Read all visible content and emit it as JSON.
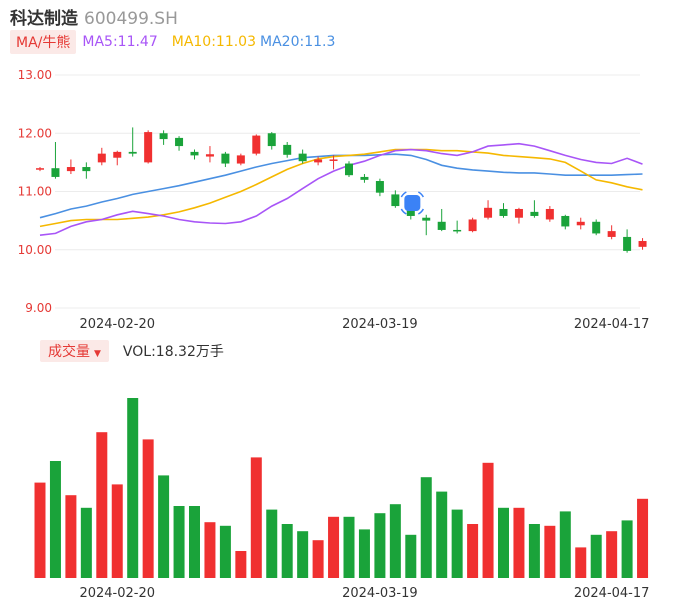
{
  "header": {
    "name": "科达制造",
    "code": "600499.SH"
  },
  "ma_bar": {
    "toggle": "MA/牛熊",
    "ma5": "MA5:11.47",
    "ma10": "MA10:11.03",
    "ma20": "MA20:11.3",
    "colors": {
      "ma5": "#a855f7",
      "ma10": "#f5b800",
      "ma20": "#4a90e2"
    }
  },
  "vol_bar": {
    "toggle": "成交量",
    "value": "VOL:18.32万手"
  },
  "colors": {
    "up": "#f03030",
    "down": "#1aa33a"
  },
  "chart_data": {
    "type": "candlestick",
    "y_ticks": [
      "13.00",
      "12.00",
      "11.00",
      "10.00",
      "9.00"
    ],
    "ylim": [
      9,
      13
    ],
    "x_tick_labels": [
      "2024-02-20",
      "2024-03-19",
      "2024-04-17"
    ],
    "candles": [
      {
        "o": 11.38,
        "h": 11.42,
        "l": 11.35,
        "c": 11.4
      },
      {
        "o": 11.4,
        "h": 11.85,
        "l": 11.22,
        "c": 11.25
      },
      {
        "o": 11.35,
        "h": 11.55,
        "l": 11.3,
        "c": 11.42
      },
      {
        "o": 11.42,
        "h": 11.5,
        "l": 11.22,
        "c": 11.35
      },
      {
        "o": 11.5,
        "h": 11.75,
        "l": 11.45,
        "c": 11.65
      },
      {
        "o": 11.58,
        "h": 11.7,
        "l": 11.45,
        "c": 11.68
      },
      {
        "o": 11.68,
        "h": 12.1,
        "l": 11.6,
        "c": 11.65
      },
      {
        "o": 11.5,
        "h": 12.05,
        "l": 11.48,
        "c": 12.02
      },
      {
        "o": 12.0,
        "h": 12.05,
        "l": 11.8,
        "c": 11.9
      },
      {
        "o": 11.92,
        "h": 11.95,
        "l": 11.7,
        "c": 11.78
      },
      {
        "o": 11.68,
        "h": 11.72,
        "l": 11.55,
        "c": 11.62
      },
      {
        "o": 11.6,
        "h": 11.78,
        "l": 11.5,
        "c": 11.64
      },
      {
        "o": 11.65,
        "h": 11.68,
        "l": 11.42,
        "c": 11.48
      },
      {
        "o": 11.48,
        "h": 11.65,
        "l": 11.45,
        "c": 11.62
      },
      {
        "o": 11.65,
        "h": 11.98,
        "l": 11.62,
        "c": 11.96
      },
      {
        "o": 12.0,
        "h": 12.02,
        "l": 11.72,
        "c": 11.78
      },
      {
        "o": 11.8,
        "h": 11.85,
        "l": 11.58,
        "c": 11.63
      },
      {
        "o": 11.65,
        "h": 11.72,
        "l": 11.48,
        "c": 11.52
      },
      {
        "o": 11.5,
        "h": 11.6,
        "l": 11.45,
        "c": 11.55
      },
      {
        "o": 11.55,
        "h": 11.62,
        "l": 11.38,
        "c": 11.55
      },
      {
        "o": 11.48,
        "h": 11.52,
        "l": 11.25,
        "c": 11.28
      },
      {
        "o": 11.25,
        "h": 11.3,
        "l": 11.15,
        "c": 11.2
      },
      {
        "o": 11.18,
        "h": 11.22,
        "l": 10.92,
        "c": 10.98
      },
      {
        "o": 10.95,
        "h": 11.02,
        "l": 10.72,
        "c": 10.75
      },
      {
        "o": 10.78,
        "h": 10.82,
        "l": 10.52,
        "c": 10.58
      },
      {
        "o": 10.55,
        "h": 10.6,
        "l": 10.25,
        "c": 10.5
      },
      {
        "o": 10.48,
        "h": 10.7,
        "l": 10.32,
        "c": 10.34
      },
      {
        "o": 10.34,
        "h": 10.5,
        "l": 10.28,
        "c": 10.32
      },
      {
        "o": 10.32,
        "h": 10.55,
        "l": 10.3,
        "c": 10.52
      },
      {
        "o": 10.55,
        "h": 10.85,
        "l": 10.52,
        "c": 10.72
      },
      {
        "o": 10.7,
        "h": 10.8,
        "l": 10.55,
        "c": 10.58
      },
      {
        "o": 10.55,
        "h": 10.72,
        "l": 10.45,
        "c": 10.7
      },
      {
        "o": 10.65,
        "h": 10.85,
        "l": 10.55,
        "c": 10.58
      },
      {
        "o": 10.52,
        "h": 10.75,
        "l": 10.48,
        "c": 10.7
      },
      {
        "o": 10.58,
        "h": 10.6,
        "l": 10.35,
        "c": 10.4
      },
      {
        "o": 10.42,
        "h": 10.55,
        "l": 10.35,
        "c": 10.48
      },
      {
        "o": 10.48,
        "h": 10.52,
        "l": 10.25,
        "c": 10.28
      },
      {
        "o": 10.22,
        "h": 10.42,
        "l": 10.18,
        "c": 10.32
      },
      {
        "o": 10.22,
        "h": 10.35,
        "l": 9.95,
        "c": 9.98
      },
      {
        "o": 10.05,
        "h": 10.2,
        "l": 10.0,
        "c": 10.15
      }
    ],
    "ma5": [
      10.25,
      10.28,
      10.4,
      10.48,
      10.52,
      10.6,
      10.66,
      10.62,
      10.58,
      10.52,
      10.48,
      10.46,
      10.45,
      10.48,
      10.58,
      10.75,
      10.88,
      11.05,
      11.22,
      11.35,
      11.45,
      11.52,
      11.62,
      11.7,
      11.72,
      11.7,
      11.65,
      11.62,
      11.68,
      11.78,
      11.8,
      11.82,
      11.78,
      11.7,
      11.62,
      11.55,
      11.5,
      11.48,
      11.57,
      11.47
    ],
    "ma10": [
      10.4,
      10.45,
      10.5,
      10.52,
      10.52,
      10.52,
      10.54,
      10.56,
      10.6,
      10.65,
      10.72,
      10.8,
      10.9,
      11.0,
      11.12,
      11.25,
      11.38,
      11.48,
      11.56,
      11.6,
      11.62,
      11.64,
      11.68,
      11.72,
      11.72,
      11.72,
      11.7,
      11.7,
      11.68,
      11.66,
      11.62,
      11.6,
      11.58,
      11.56,
      11.5,
      11.35,
      11.2,
      11.15,
      11.08,
      11.03
    ],
    "ma20": [
      10.55,
      10.62,
      10.7,
      10.75,
      10.82,
      10.88,
      10.95,
      11.0,
      11.05,
      11.1,
      11.16,
      11.22,
      11.28,
      11.35,
      11.42,
      11.48,
      11.53,
      11.58,
      11.6,
      11.62,
      11.62,
      11.62,
      11.63,
      11.64,
      11.62,
      11.55,
      11.45,
      11.4,
      11.37,
      11.35,
      11.33,
      11.32,
      11.32,
      11.3,
      11.28,
      11.28,
      11.28,
      11.28,
      11.29,
      11.3
    ],
    "volume": [
      0.53,
      0.65,
      0.46,
      0.39,
      0.81,
      0.52,
      1.0,
      0.77,
      0.57,
      0.4,
      0.4,
      0.31,
      0.29,
      0.15,
      0.67,
      0.38,
      0.3,
      0.26,
      0.21,
      0.34,
      0.34,
      0.27,
      0.36,
      0.41,
      0.24,
      0.56,
      0.48,
      0.38,
      0.3,
      0.64,
      0.39,
      0.39,
      0.3,
      0.29,
      0.37,
      0.17,
      0.24,
      0.26,
      0.32,
      0.44
    ]
  }
}
